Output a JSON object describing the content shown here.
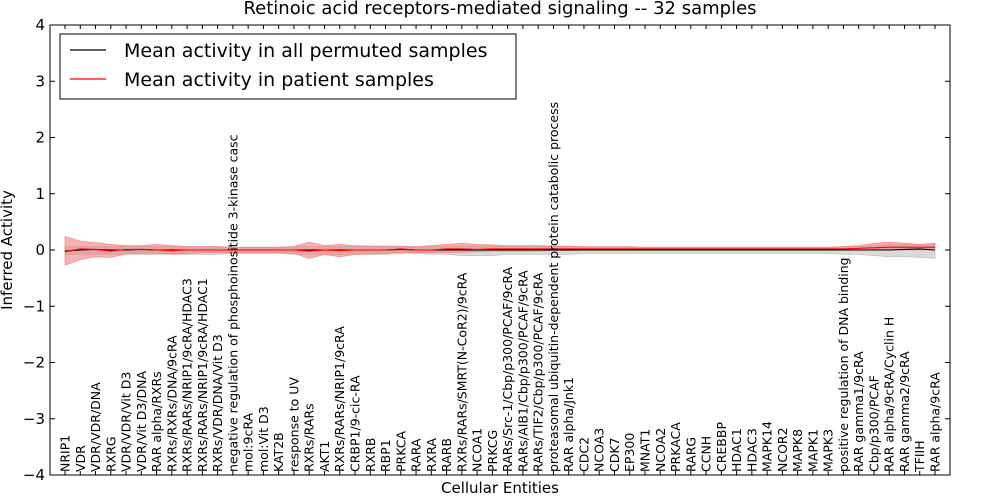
{
  "chart_data": {
    "type": "line",
    "title": "Retinoic acid receptors-mediated signaling -- 32 samples",
    "xlabel": "Cellular Entities",
    "ylabel": "Inferred Activity",
    "ylim": [
      -4,
      4
    ],
    "yticks": [
      "−4",
      "−3",
      "−2",
      "−1",
      "0",
      "1",
      "2",
      "3",
      "4"
    ],
    "ytick_values": [
      -4,
      -3,
      -2,
      -1,
      0,
      1,
      2,
      3,
      4
    ],
    "legend": {
      "position": "top-left",
      "entries": [
        {
          "label": "Mean activity in all permuted samples",
          "color": "#000000"
        },
        {
          "label": "Mean activity in patient samples",
          "color": "#ff0000"
        }
      ]
    },
    "colors": {
      "patient_line": "#ff0000",
      "patient_band": "#f08080",
      "permuted_line": "#000000",
      "permuted_band": "#bbbbbb"
    },
    "categories": [
      "NRIP1",
      "VDR",
      "VDR/VDR/DNA",
      "RXRG",
      "VDR/VDR/Vit D3",
      "VDR/Vit D3/DNA",
      "RAR alpha/RXRs",
      "RXRs/RXRs/DNA/9cRA",
      "RXRs/RARs/NRIP1/9cRA/HDAC3",
      "RXRs/RARs/NRIP1/9cRA/HDAC1",
      "RXRs/VDR/DNA/Vit D3",
      "negative regulation of phosphoinositide 3-kinase casc",
      "mol:9cRA",
      "mol:Vit D3",
      "KAT2B",
      "response to UV",
      "RXRs/RARs",
      "AKT1",
      "RXRs/RARs/NRIP1/9cRA",
      "CRBP1/9-cic-RA",
      "RXRB",
      "RBP1",
      "PRKCA",
      "RARA",
      "RXRA",
      "RARB",
      "RXRs/RARs/SMRT(N-CoR2)/9cRA",
      "NCOA1",
      "PRKCG",
      "RARs/Src-1/Cbp/p300/PCAF/9cRA",
      "RARs/AIB1/Cbp/p300/PCAF/9cRA",
      "RARs/TIF2/Cbp/p300/PCAF/9cRA",
      "proteasomal ubiquitin-dependent protein catabolic process",
      "RAR alpha/Jnk1",
      "CDC2",
      "NCOA3",
      "CDK7",
      "EP300",
      "MNAT1",
      "NCOA2",
      "PRKACA",
      "RARG",
      "CCNH",
      "CREBBP",
      "HDAC1",
      "HDAC3",
      "MAPK14",
      "NCOR2",
      "MAPK8",
      "MAPK1",
      "MAPK3",
      "positive regulation of DNA binding",
      "RAR gamma1/9cRA",
      "Cbp/p300/PCAF",
      "RAR alpha/9cRA/Cyclin H",
      "RAR gamma2/9cRA",
      "TFIIH",
      "RAR alpha/9cRA"
    ],
    "series": [
      {
        "name": "Mean activity in all permuted samples",
        "values": [
          -0.02,
          0.0,
          0.01,
          0.0,
          0.0,
          0.01,
          0.0,
          0.0,
          0.0,
          0.0,
          0.0,
          0.0,
          0.0,
          0.0,
          0.0,
          0.0,
          0.0,
          0.0,
          0.0,
          0.0,
          0.0,
          0.0,
          0.01,
          0.0,
          0.0,
          0.0,
          0.0,
          0.0,
          0.0,
          0.0,
          0.0,
          0.0,
          0.0,
          0.0,
          0.0,
          0.0,
          0.0,
          0.0,
          0.0,
          0.0,
          0.0,
          0.0,
          0.0,
          0.0,
          0.0,
          0.0,
          0.0,
          0.0,
          0.0,
          0.0,
          0.0,
          0.0,
          0.0,
          0.0,
          0.0,
          0.01,
          0.02,
          0.0
        ],
        "lower": [
          -0.08,
          -0.08,
          -0.08,
          -0.08,
          -0.08,
          -0.08,
          -0.08,
          -0.08,
          -0.08,
          -0.08,
          -0.08,
          -0.06,
          -0.06,
          -0.06,
          -0.06,
          -0.08,
          -0.08,
          -0.08,
          -0.08,
          -0.08,
          -0.08,
          -0.08,
          -0.06,
          -0.06,
          -0.08,
          -0.08,
          -0.1,
          -0.1,
          -0.1,
          -0.08,
          -0.08,
          -0.08,
          -0.08,
          -0.08,
          -0.06,
          -0.06,
          -0.06,
          -0.06,
          -0.06,
          -0.06,
          -0.06,
          -0.06,
          -0.06,
          -0.06,
          -0.06,
          -0.06,
          -0.06,
          -0.06,
          -0.06,
          -0.06,
          -0.06,
          -0.08,
          -0.08,
          -0.1,
          -0.12,
          -0.12,
          -0.13,
          -0.15
        ],
        "upper": [
          0.06,
          0.06,
          0.06,
          0.06,
          0.06,
          0.06,
          0.06,
          0.06,
          0.06,
          0.06,
          0.06,
          0.05,
          0.05,
          0.05,
          0.05,
          0.06,
          0.06,
          0.06,
          0.06,
          0.06,
          0.06,
          0.06,
          0.05,
          0.05,
          0.06,
          0.06,
          0.07,
          0.07,
          0.07,
          0.06,
          0.06,
          0.06,
          0.06,
          0.06,
          0.05,
          0.05,
          0.05,
          0.05,
          0.05,
          0.05,
          0.05,
          0.05,
          0.05,
          0.05,
          0.05,
          0.05,
          0.05,
          0.05,
          0.05,
          0.05,
          0.05,
          0.06,
          0.06,
          0.08,
          0.1,
          0.1,
          0.1,
          0.12
        ]
      },
      {
        "name": "Mean activity in patient samples",
        "values": [
          -0.03,
          0.02,
          0.01,
          -0.02,
          0.01,
          0.01,
          0.0,
          -0.01,
          0.0,
          0.0,
          0.0,
          0.0,
          0.0,
          0.0,
          0.0,
          0.0,
          -0.02,
          0.0,
          -0.01,
          0.0,
          0.0,
          0.0,
          0.02,
          0.0,
          0.0,
          0.02,
          0.02,
          0.01,
          0.02,
          0.02,
          0.02,
          0.02,
          0.02,
          0.02,
          0.02,
          0.02,
          0.02,
          0.02,
          0.02,
          0.02,
          0.02,
          0.02,
          0.02,
          0.02,
          0.02,
          0.02,
          0.02,
          0.02,
          0.02,
          0.02,
          0.02,
          0.02,
          0.03,
          0.04,
          0.05,
          0.05,
          0.05,
          0.05
        ],
        "lower": [
          -0.27,
          -0.17,
          -0.12,
          -0.13,
          -0.07,
          -0.06,
          -0.06,
          -0.07,
          -0.06,
          -0.05,
          -0.05,
          -0.05,
          -0.05,
          -0.05,
          -0.05,
          -0.06,
          -0.15,
          -0.08,
          -0.12,
          -0.08,
          -0.07,
          -0.06,
          -0.04,
          -0.05,
          -0.05,
          -0.04,
          -0.04,
          -0.03,
          -0.02,
          -0.02,
          -0.02,
          -0.02,
          -0.01,
          -0.01,
          0.0,
          0.0,
          0.0,
          0.0,
          0.0,
          0.0,
          0.0,
          0.0,
          0.0,
          0.0,
          0.0,
          0.0,
          0.0,
          0.0,
          0.0,
          0.0,
          0.0,
          0.0,
          0.0,
          0.01,
          0.01,
          0.0,
          0.0,
          0.0
        ],
        "upper": [
          0.24,
          0.16,
          0.13,
          0.1,
          0.08,
          0.08,
          0.1,
          0.08,
          0.06,
          0.06,
          0.06,
          0.05,
          0.05,
          0.05,
          0.05,
          0.06,
          0.14,
          0.08,
          0.1,
          0.08,
          0.07,
          0.07,
          0.07,
          0.06,
          0.08,
          0.1,
          0.12,
          0.1,
          0.09,
          0.08,
          0.08,
          0.08,
          0.07,
          0.07,
          0.06,
          0.06,
          0.06,
          0.06,
          0.05,
          0.05,
          0.05,
          0.05,
          0.05,
          0.05,
          0.05,
          0.05,
          0.05,
          0.05,
          0.05,
          0.05,
          0.05,
          0.06,
          0.08,
          0.12,
          0.14,
          0.12,
          0.1,
          0.12
        ]
      }
    ]
  }
}
